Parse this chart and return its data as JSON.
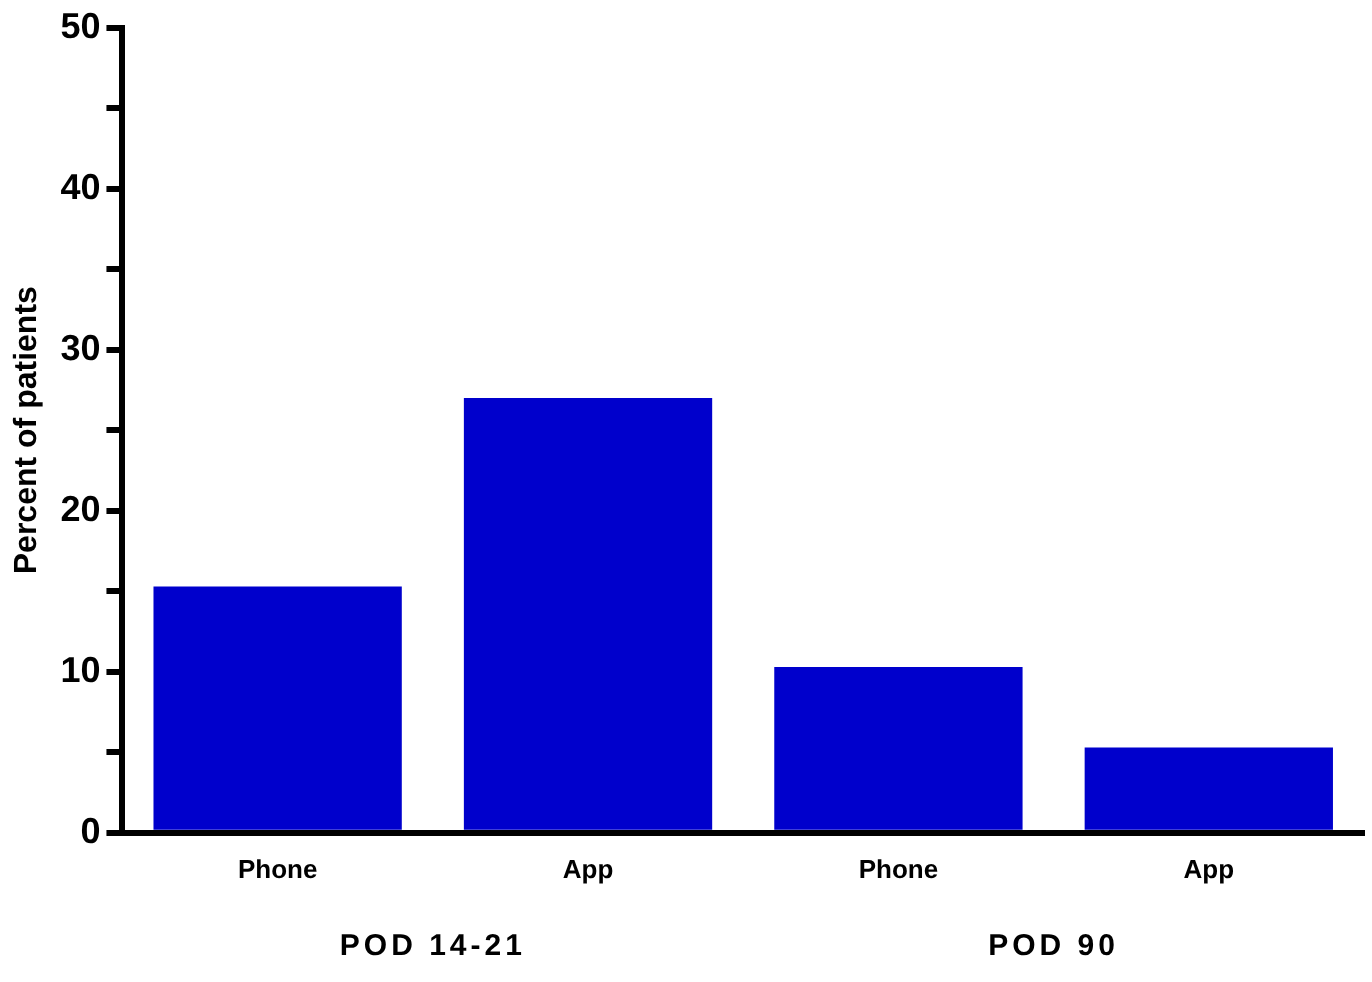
{
  "chart_data": {
    "type": "bar",
    "ylabel": "Percent of patients",
    "categories": [
      "Phone",
      "App",
      "Phone",
      "App"
    ],
    "values": [
      15.3,
      27.0,
      10.3,
      5.3
    ],
    "color": "#0000cc",
    "ylim": [
      0,
      50
    ],
    "yticks": [
      0,
      {
        "value": 5,
        "label": null
      },
      10,
      {
        "value": 15,
        "label": null
      },
      20,
      {
        "value": 25,
        "label": null
      },
      30,
      {
        "value": 35,
        "label": null
      },
      40,
      {
        "value": 45,
        "label": null
      },
      50
    ],
    "annotations": [
      "POD 14-21",
      "POD 90"
    ],
    "grid": false,
    "legend": false
  }
}
